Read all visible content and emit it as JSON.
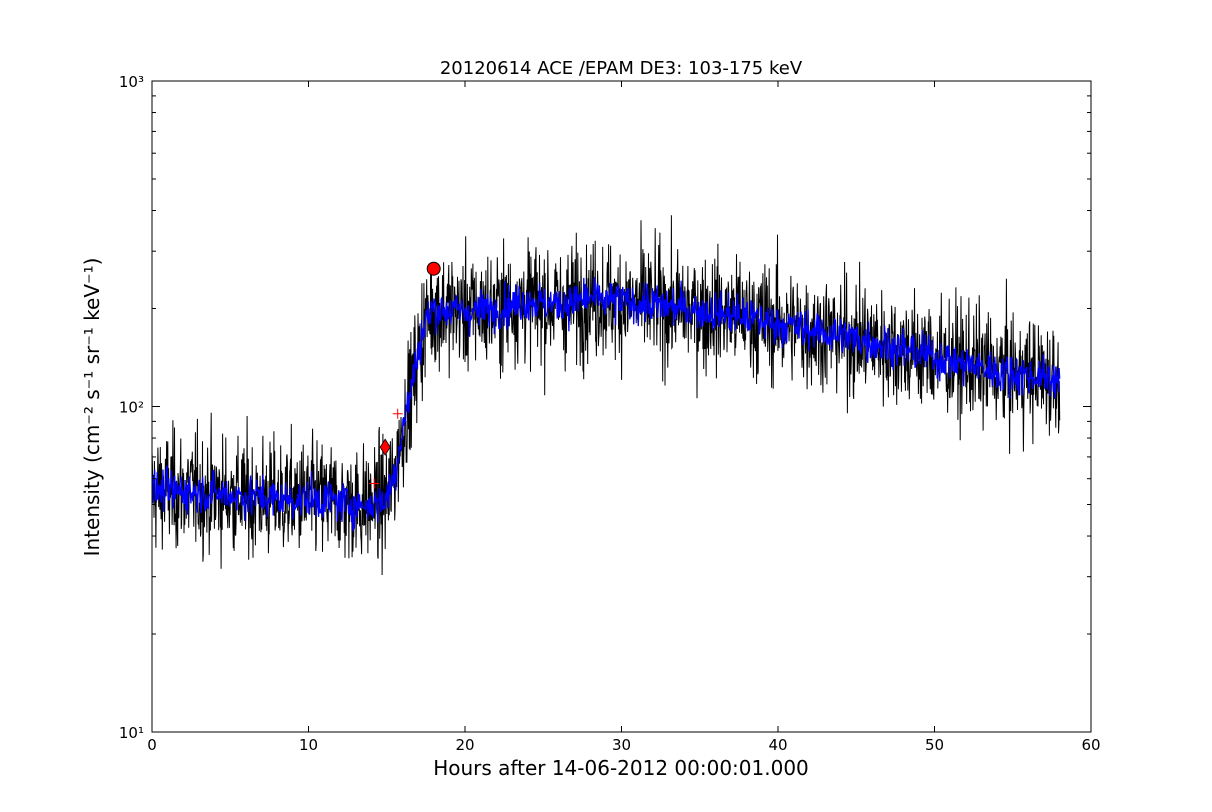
{
  "chart_data": {
    "type": "line",
    "title": "20120614 ACE /EPAM DE3: 103-175 keV",
    "xlabel": "Hours after 14-06-2012 00:00:01.000",
    "ylabel": "Intensity (cm⁻² s⁻¹ sr⁻¹ keV⁻¹)",
    "xlim": [
      0,
      60
    ],
    "ylim": [
      10,
      1000
    ],
    "yscale": "log",
    "grid": false,
    "x_ticks": [
      0,
      10,
      20,
      30,
      40,
      50,
      60
    ],
    "x_tick_labels": [
      "0",
      "10",
      "20",
      "30",
      "40",
      "50",
      "60"
    ],
    "y_ticks": [
      10,
      100,
      1000
    ],
    "y_tick_labels": [
      "10¹",
      "10²",
      "10³"
    ],
    "series": [
      {
        "kind": "raw",
        "color": "#000000",
        "x": [
          0,
          2,
          4,
          6,
          8,
          10,
          12,
          13,
          14,
          15,
          15.5,
          16,
          16.5,
          17,
          17.5,
          18,
          19,
          20,
          22,
          24,
          26,
          28,
          30,
          32,
          34,
          36,
          38,
          40,
          42,
          44,
          46,
          48,
          50,
          52,
          54,
          56,
          58
        ],
        "y": [
          55,
          55,
          54,
          53,
          52,
          52,
          51,
          50,
          50,
          52,
          62,
          85,
          110,
          145,
          185,
          200,
          198,
          196,
          200,
          212,
          205,
          215,
          210,
          205,
          200,
          195,
          188,
          180,
          172,
          165,
          158,
          150,
          142,
          135,
          128,
          125,
          122
        ],
        "spread": 0.35
      },
      {
        "kind": "smoothed",
        "color": "#0000ff",
        "x": [
          0,
          2,
          4,
          6,
          8,
          10,
          12,
          13,
          14,
          15,
          15.5,
          16,
          16.5,
          17,
          17.5,
          18,
          19,
          20,
          22,
          24,
          26,
          28,
          30,
          32,
          34,
          36,
          38,
          40,
          42,
          44,
          46,
          48,
          50,
          52,
          54,
          56,
          58
        ],
        "y": [
          55,
          55,
          54,
          53,
          52,
          52,
          51,
          50,
          50,
          52,
          62,
          85,
          110,
          145,
          185,
          200,
          198,
          196,
          200,
          212,
          205,
          215,
          210,
          205,
          200,
          195,
          188,
          180,
          172,
          165,
          158,
          150,
          142,
          135,
          128,
          125,
          122
        ],
        "spread": 0.12
      }
    ],
    "markers": [
      {
        "shape": "plus",
        "x": 14.2,
        "y": 58,
        "color": "#ff0000"
      },
      {
        "shape": "diamond",
        "x": 14.9,
        "y": 75,
        "color": "#ff0000"
      },
      {
        "shape": "plus",
        "x": 15.7,
        "y": 95,
        "color": "#ff0000"
      },
      {
        "shape": "circle",
        "x": 18.0,
        "y": 265,
        "color": "#ff0000"
      }
    ]
  }
}
